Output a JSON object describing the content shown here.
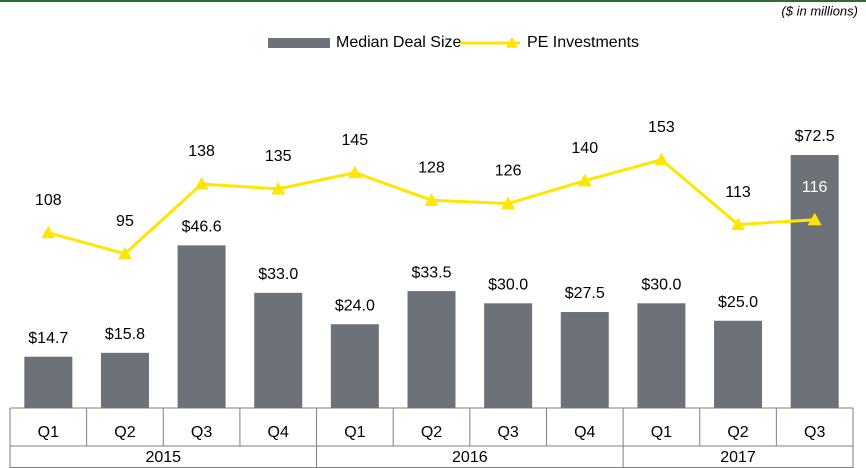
{
  "chart_data": {
    "type": "bar-line",
    "note": "($ in millions)",
    "groups": [
      {
        "name": "2015",
        "categories": [
          "Q1",
          "Q2",
          "Q3",
          "Q4"
        ]
      },
      {
        "name": "2016",
        "categories": [
          "Q1",
          "Q2",
          "Q3",
          "Q4"
        ]
      },
      {
        "name": "2017",
        "categories": [
          "Q1",
          "Q2",
          "Q3"
        ]
      }
    ],
    "series": [
      {
        "name": "Median Deal Size",
        "type": "bar",
        "color": "#6d7278",
        "values": [
          14.7,
          15.8,
          46.6,
          33.0,
          24.0,
          33.5,
          30.0,
          27.5,
          30.0,
          25.0,
          72.5
        ],
        "value_labels": [
          "$14.7",
          "$15.8",
          "$46.6",
          "$33.0",
          "$24.0",
          "$33.5",
          "$30.0",
          "$27.5",
          "$30.0",
          "$25.0",
          "$72.5"
        ]
      },
      {
        "name": "PE Investments",
        "type": "line",
        "axis": "y2",
        "color": "#ffe600",
        "marker": "triangle",
        "values": [
          108,
          95,
          138,
          135,
          145,
          128,
          126,
          140,
          153,
          113,
          116
        ]
      }
    ],
    "ylim": [
      0,
      100
    ],
    "y2lim": [
      0,
      215
    ],
    "legend": "top"
  }
}
